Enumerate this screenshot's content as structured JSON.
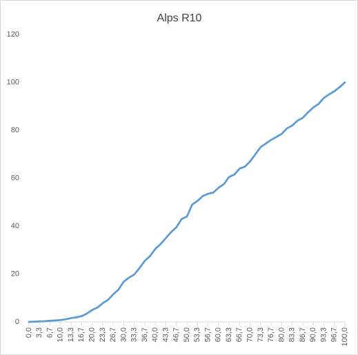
{
  "chart_data": {
    "type": "line",
    "title": "Alps R10",
    "categories": [
      "0,0",
      null,
      "3,3",
      null,
      "6,7",
      null,
      "10,0",
      null,
      "13,3",
      null,
      "16,7",
      null,
      "20,0",
      null,
      "23,3",
      null,
      "26,7",
      null,
      "30,0",
      null,
      "33,3",
      null,
      "36,7",
      null,
      "40,0",
      null,
      "43,3",
      null,
      "46,7",
      null,
      "50,0",
      null,
      "53,3",
      null,
      "56,7",
      null,
      "60,0",
      null,
      "63,3",
      null,
      "66,7",
      null,
      "70,0",
      null,
      "73,3",
      null,
      "76,7",
      null,
      "80,0",
      null,
      "83,3",
      null,
      "86,7",
      null,
      "90,0",
      null,
      "93,3",
      null,
      "96,7",
      null,
      "100,0"
    ],
    "values": [
      0,
      0.1,
      0.2,
      0.3,
      0.5,
      0.6,
      0.8,
      1.1,
      1.6,
      1.9,
      2.4,
      3.5,
      5,
      6,
      7.8,
      9.2,
      11.5,
      13.5,
      16.8,
      18.5,
      19.8,
      22.5,
      25.5,
      27.5,
      30.5,
      32.5,
      35,
      37.5,
      39.5,
      43,
      44,
      49,
      50.5,
      52.5,
      53.5,
      54,
      56,
      57.5,
      60.5,
      61.5,
      64,
      64.8,
      67,
      70,
      73,
      74.5,
      76,
      77.2,
      78.5,
      80.8,
      82,
      84,
      85.2,
      87.5,
      89.5,
      91,
      93.5,
      95,
      96.3,
      98,
      100
    ],
    "color": "#5b9bd5",
    "ylim": [
      0,
      120
    ],
    "yticks": [
      0,
      20,
      40,
      60,
      80,
      100,
      120
    ],
    "grid": false
  }
}
